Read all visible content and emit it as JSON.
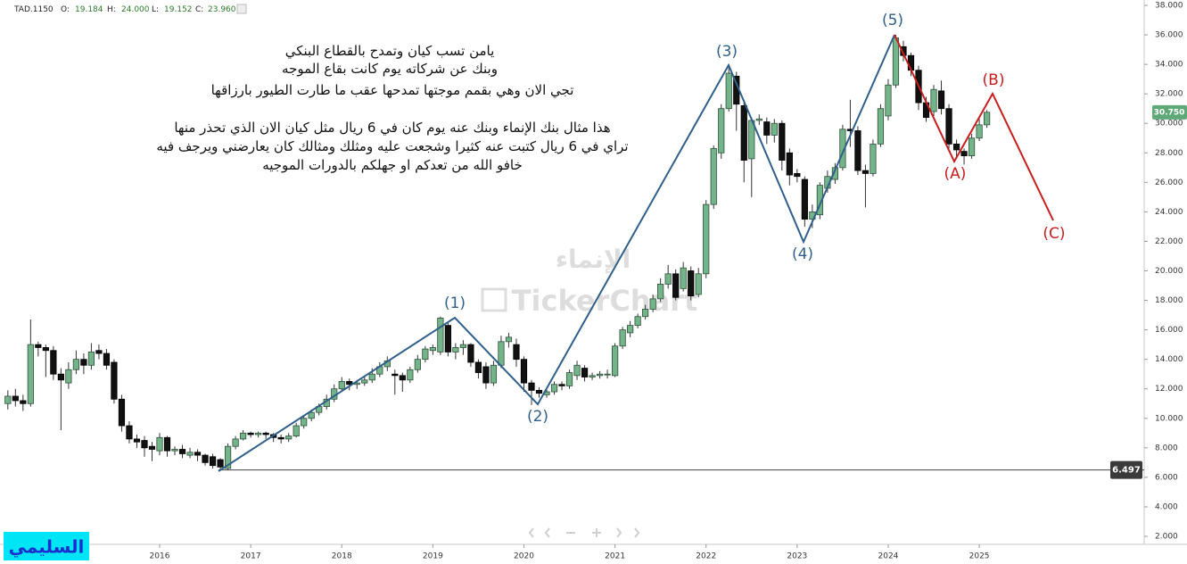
{
  "chart_data": {
    "type": "candlestick",
    "symbol": "TAD.1150",
    "readout": [
      {
        "key": "O:",
        "value": "19.184"
      },
      {
        "key": "H:",
        "value": "24.000"
      },
      {
        "key": "L:",
        "value": "19.152"
      },
      {
        "key": "C:",
        "value": "23.960"
      }
    ],
    "categories": [
      null,
      null,
      null,
      null,
      null,
      null,
      null,
      null,
      null,
      null,
      null,
      null,
      null,
      null,
      null,
      null,
      null,
      null,
      null,
      null,
      "2016",
      null,
      null,
      null,
      null,
      null,
      null,
      null,
      null,
      null,
      null,
      null,
      "2017",
      null,
      null,
      null,
      null,
      null,
      null,
      null,
      null,
      null,
      null,
      null,
      "2018",
      null,
      null,
      null,
      null,
      null,
      null,
      null,
      null,
      null,
      null,
      null,
      "2019",
      null,
      null,
      null,
      null,
      null,
      null,
      null,
      null,
      null,
      null,
      null,
      "2020",
      null,
      null,
      null,
      null,
      null,
      null,
      null,
      null,
      null,
      null,
      null,
      "2021",
      null,
      null,
      null,
      null,
      null,
      null,
      null,
      null,
      null,
      null,
      null,
      "2022",
      null,
      null,
      null,
      null,
      null,
      null,
      null,
      null,
      null,
      null,
      null,
      "2023",
      null,
      null,
      null,
      null,
      null,
      null,
      null,
      null,
      null,
      null,
      null,
      "2024",
      null,
      null,
      null,
      null,
      null,
      null,
      null,
      null,
      null,
      null,
      null,
      "2025",
      null
    ],
    "open": [
      11.0,
      11.5,
      11.2,
      11.0,
      15.0,
      14.8,
      14.6,
      13.0,
      12.4,
      13.3,
      14.0,
      13.6,
      14.6,
      14.4,
      13.8,
      11.3,
      9.5,
      8.6,
      8.5,
      8.1,
      7.8,
      8.7,
      7.8,
      7.9,
      7.5,
      7.7,
      7.5,
      7.4,
      7.2,
      6.6,
      8.1,
      8.6,
      9.0,
      8.9,
      9.0,
      8.9,
      8.7,
      8.6,
      8.8,
      9.5,
      10.0,
      10.4,
      10.8,
      11.3,
      12.0,
      12.5,
      12.3,
      12.4,
      12.6,
      13.0,
      13.5,
      13.0,
      12.9,
      12.6,
      13.3,
      14.0,
      14.6,
      14.5,
      16.3,
      14.5,
      14.8,
      15.0,
      13.8,
      13.5,
      12.4,
      13.6,
      15.2,
      15.0,
      14.0,
      12.4,
      11.9,
      11.6,
      11.8,
      12.3,
      12.2,
      12.9,
      13.4,
      12.8,
      12.9,
      13.0,
      12.9,
      14.9,
      15.8,
      16.3,
      16.9,
      17.4,
      18.1,
      19.1,
      19.8,
      18.8,
      20.0,
      18.4,
      19.8,
      24.5,
      28.0,
      31.0,
      33.2,
      31.2,
      27.6,
      30.2,
      30.1,
      29.2,
      30.0,
      28.0,
      26.6,
      26.2,
      23.5,
      23.8,
      25.6,
      26.2,
      27.0,
      29.6,
      29.5,
      26.8,
      26.6,
      28.6,
      30.5,
      32.6,
      35.2,
      34.6,
      33.6,
      31.4,
      30.8,
      32.2,
      31.0,
      28.6,
      28.1,
      27.8,
      29.0,
      29.9
    ],
    "high": [
      11.9,
      12.0,
      11.6,
      16.7,
      15.2,
      15.0,
      14.9,
      13.4,
      13.8,
      14.6,
      14.4,
      15.1,
      15.0,
      14.7,
      14.0,
      11.6,
      9.8,
      8.9,
      8.8,
      8.4,
      9.0,
      8.8,
      8.1,
      8.2,
      8.0,
      7.9,
      7.6,
      7.6,
      7.3,
      8.3,
      8.8,
      9.2,
      9.1,
      9.1,
      9.1,
      9.0,
      8.9,
      9.0,
      9.7,
      10.2,
      10.6,
      11.0,
      11.6,
      12.3,
      12.8,
      12.7,
      12.6,
      12.9,
      13.4,
      13.8,
      14.2,
      13.3,
      13.1,
      13.5,
      14.3,
      14.9,
      15.0,
      16.9,
      16.5,
      15.1,
      15.3,
      15.1,
      14.0,
      13.8,
      13.9,
      15.6,
      15.8,
      15.4,
      14.2,
      12.6,
      12.1,
      12.0,
      12.5,
      12.5,
      13.3,
      13.9,
      13.6,
      13.1,
      13.2,
      13.3,
      15.1,
      16.2,
      16.6,
      17.1,
      17.7,
      18.4,
      19.5,
      20.4,
      20.1,
      20.6,
      20.3,
      20.2,
      24.8,
      28.5,
      31.3,
      34.0,
      33.5,
      31.6,
      30.4,
      30.6,
      30.4,
      30.3,
      30.2,
      28.3,
      26.9,
      26.4,
      24.5,
      26.0,
      26.8,
      27.3,
      29.9,
      31.6,
      29.8,
      27.2,
      28.9,
      31.3,
      33.0,
      36.0,
      35.6,
      34.8,
      33.9,
      31.8,
      32.6,
      32.9,
      31.3,
      28.9,
      28.3,
      29.3,
      30.3,
      30.9
    ],
    "low": [
      10.6,
      10.8,
      10.5,
      10.8,
      14.2,
      12.8,
      12.6,
      9.2,
      12.0,
      13.0,
      13.0,
      13.3,
      14.0,
      13.3,
      11.0,
      9.1,
      8.3,
      8.0,
      7.4,
      7.1,
      7.5,
      7.4,
      7.5,
      7.3,
      7.3,
      7.1,
      6.8,
      6.6,
      6.5,
      6.5,
      7.9,
      8.5,
      8.7,
      8.7,
      8.6,
      8.4,
      8.3,
      8.4,
      8.7,
      9.3,
      9.8,
      10.2,
      10.6,
      11.1,
      11.8,
      11.9,
      12.0,
      12.2,
      12.4,
      12.8,
      13.2,
      11.6,
      11.8,
      12.4,
      13.1,
      13.8,
      14.3,
      14.3,
      14.2,
      14.0,
      14.3,
      13.5,
      12.7,
      12.0,
      12.2,
      13.4,
      14.8,
      13.5,
      11.8,
      10.9,
      11.4,
      11.4,
      11.6,
      11.9,
      12.0,
      12.6,
      12.5,
      12.6,
      12.7,
      12.7,
      12.8,
      14.7,
      15.5,
      16.1,
      16.7,
      17.2,
      17.9,
      18.8,
      18.0,
      18.6,
      18.0,
      18.2,
      19.5,
      24.2,
      27.6,
      30.8,
      29.5,
      26.0,
      25.0,
      29.9,
      28.6,
      28.7,
      26.8,
      25.8,
      26.0,
      23.0,
      22.9,
      23.5,
      25.3,
      25.9,
      26.8,
      28.4,
      26.5,
      24.3,
      26.4,
      28.4,
      30.2,
      32.4,
      34.2,
      33.2,
      30.9,
      30.1,
      30.5,
      30.6,
      28.3,
      27.6,
      27.2,
      27.6,
      28.8,
      29.7
    ],
    "close": [
      11.5,
      11.2,
      11.0,
      15.0,
      14.8,
      14.6,
      13.0,
      12.6,
      13.3,
      14.0,
      13.6,
      14.5,
      14.4,
      13.6,
      11.3,
      9.5,
      8.6,
      8.4,
      8.0,
      7.9,
      8.7,
      7.8,
      7.9,
      7.6,
      7.7,
      7.5,
      7.0,
      6.8,
      6.7,
      8.1,
      8.6,
      9.0,
      8.9,
      9.0,
      8.9,
      8.7,
      8.6,
      8.8,
      9.5,
      10.0,
      10.4,
      10.8,
      11.3,
      12.0,
      12.5,
      12.3,
      12.4,
      12.6,
      13.0,
      13.5,
      13.9,
      12.9,
      12.6,
      13.3,
      14.0,
      14.7,
      14.8,
      16.8,
      14.5,
      14.8,
      15.0,
      13.8,
      13.1,
      12.4,
      13.6,
      15.2,
      15.5,
      14.0,
      12.4,
      11.9,
      11.7,
      11.8,
      12.3,
      12.2,
      13.1,
      13.6,
      12.8,
      12.9,
      13.0,
      13.0,
      14.9,
      16.0,
      16.3,
      16.9,
      17.4,
      18.1,
      19.1,
      19.8,
      18.2,
      20.2,
      18.3,
      19.8,
      24.5,
      28.3,
      31.0,
      33.4,
      31.3,
      27.5,
      30.2,
      30.3,
      29.2,
      30.0,
      27.5,
      26.5,
      26.4,
      23.5,
      24.0,
      25.8,
      26.4,
      27.0,
      29.6,
      29.5,
      26.8,
      26.6,
      28.6,
      31.0,
      32.6,
      35.8,
      34.6,
      33.6,
      31.4,
      30.4,
      32.3,
      31.0,
      28.6,
      28.2,
      27.8,
      29.0,
      29.9,
      30.75
    ],
    "up_color": "#74b48b",
    "down_color": "#111111",
    "ylim": [
      2,
      38
    ],
    "yticks": [
      {
        "value": 2,
        "label": "2.000"
      },
      {
        "value": 4,
        "label": "4.000"
      },
      {
        "value": 6,
        "label": "6.000"
      },
      {
        "value": 8,
        "label": "8.000"
      },
      {
        "value": 10,
        "label": "10.000"
      },
      {
        "value": 12,
        "label": "12.000"
      },
      {
        "value": 14,
        "label": "14.000"
      },
      {
        "value": 16,
        "label": "16.000"
      },
      {
        "value": 18,
        "label": "18.000"
      },
      {
        "value": 20,
        "label": "20.000"
      },
      {
        "value": 22,
        "label": "22.000"
      },
      {
        "value": 24,
        "label": "24.000"
      },
      {
        "value": 26,
        "label": "26.000"
      },
      {
        "value": 28,
        "label": "28.000"
      },
      {
        "value": 30,
        "label": "30.000"
      },
      {
        "value": 32,
        "label": "32.000"
      },
      {
        "value": 34,
        "label": "34.000"
      },
      {
        "value": 36,
        "label": "36.000"
      },
      {
        "value": 38,
        "label": "38.000"
      }
    ],
    "price_labels": [
      {
        "value": 30.75,
        "label": "30.750",
        "color": "#5fa878"
      },
      {
        "value": 6.497,
        "label": "6.497",
        "color": "#3a3a3a"
      }
    ],
    "waves": [
      "(1)",
      "(2)",
      "(3)",
      "(4)",
      "(5)",
      "(A)",
      "(B)",
      "(C)"
    ],
    "watermarks": [
      "الإنماء",
      "TickerChart"
    ],
    "notes": [
      "يامن تسب كيان وتمدح بالقطاع البنكي",
      "وبنك عن شركاته يوم كانت بقاع الموجه",
      "تجي الان وهي بقمم موجتها تمدحها عقب ما طارت الطيور بارزاقها",
      "هذا مثال بنك الإنماء وبنك عنه يوم كان في 6 ريال  مثل كيان الان الذي تحذر منها",
      "تراي في 6 ريال كتبت عنه كثيرا وشجعت عليه ومثلك ومثالك كان يعارضني ويرجف فيه",
      "خافو الله من تعدكم او جهلكم بالدورات الموجيه"
    ],
    "signature": "السليمي"
  }
}
